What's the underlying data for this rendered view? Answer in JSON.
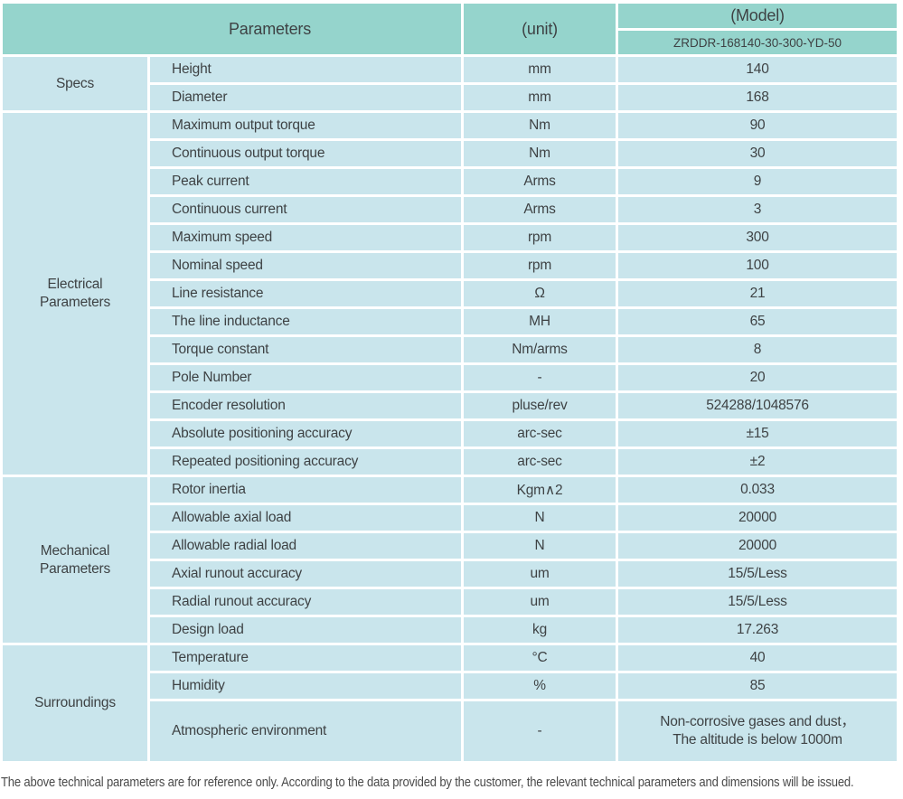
{
  "colors": {
    "header_bg": "#95d4cc",
    "row_bg": "#c9e5ec",
    "text": "#3e4244"
  },
  "header": {
    "parameters_label": "Parameters",
    "unit_label": "(unit)",
    "model_label": "(Model)",
    "model_value": "ZRDDR-168140-30-300-YD-50"
  },
  "groups": [
    {
      "name": "Specs",
      "rows": [
        {
          "param": "Height",
          "unit": "mm",
          "value": "140"
        },
        {
          "param": "Diameter",
          "unit": "mm",
          "value": "168"
        }
      ]
    },
    {
      "name": "Electrical\nParameters",
      "rows": [
        {
          "param": "Maximum output torque",
          "unit": "Nm",
          "value": "90"
        },
        {
          "param": "Continuous output torque",
          "unit": "Nm",
          "value": "30"
        },
        {
          "param": "Peak current",
          "unit": "Arms",
          "value": "9"
        },
        {
          "param": "Continuous current",
          "unit": "Arms",
          "value": "3"
        },
        {
          "param": "Maximum speed",
          "unit": "rpm",
          "value": "300"
        },
        {
          "param": "Nominal speed",
          "unit": "rpm",
          "value": "100"
        },
        {
          "param": "Line resistance",
          "unit": "Ω",
          "value": "21"
        },
        {
          "param": "The line inductance",
          "unit": "MH",
          "value": "65"
        },
        {
          "param": "Torque constant",
          "unit": "Nm/arms",
          "value": "8"
        },
        {
          "param": "Pole Number",
          "unit": "-",
          "value": "20"
        },
        {
          "param": "Encoder resolution",
          "unit": "pluse/rev",
          "value": "524288/1048576"
        },
        {
          "param": "Absolute positioning accuracy",
          "unit": "arc-sec",
          "value": "±15"
        },
        {
          "param": "Repeated positioning accuracy",
          "unit": "arc-sec",
          "value": "±2"
        }
      ]
    },
    {
      "name": "Mechanical\nParameters",
      "rows": [
        {
          "param": "Rotor inertia",
          "unit": "Kgm∧2",
          "value": "0.033"
        },
        {
          "param": "Allowable axial load",
          "unit": "N",
          "value": "20000"
        },
        {
          "param": "Allowable radial load",
          "unit": "N",
          "value": "20000"
        },
        {
          "param": "Axial runout accuracy",
          "unit": "um",
          "value": "15/5/Less"
        },
        {
          "param": "Radial runout accuracy",
          "unit": "um",
          "value": "15/5/Less"
        },
        {
          "param": "Design load",
          "unit": "kg",
          "value": "17.263"
        }
      ]
    },
    {
      "name": "Surroundings",
      "rows": [
        {
          "param": "Temperature",
          "unit": "°C",
          "value": "40"
        },
        {
          "param": "Humidity",
          "unit": "%",
          "value": "85"
        },
        {
          "param": "Atmospheric environment",
          "unit": "-",
          "value": "Non-corrosive gases and dust，\nThe altitude is below 1000m"
        }
      ]
    }
  ],
  "footer": "The above technical parameters are for reference only. According to the data provided by the customer, the relevant technical parameters and dimensions will be issued."
}
